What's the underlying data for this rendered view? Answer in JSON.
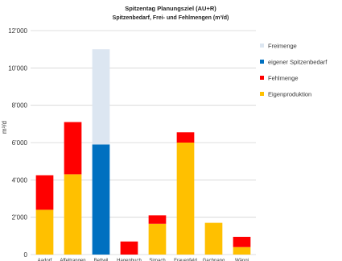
{
  "chart_data": {
    "type": "bar",
    "stacked": true,
    "title": "Spitzentag Planungsziel (AU+R)",
    "subtitle": "Spitzenbedarf, Frei- und Fehlmengen (m³/d)",
    "ylabel": "m³/d",
    "ylim": [
      0,
      12000
    ],
    "yticks": [
      0,
      2000,
      4000,
      6000,
      8000,
      10000,
      12000
    ],
    "ytick_labels": [
      "0",
      "2'000",
      "4'000",
      "6'000",
      "8'000",
      "10'000",
      "12'000"
    ],
    "grid": true,
    "legend_position": "right",
    "categories": [
      "Aadorf",
      "Affeltrangen",
      "Bettwil",
      "Hagenbuch",
      "Sirnach",
      "Frauenfeld",
      "Gachnang",
      "Wängi"
    ],
    "series": [
      {
        "name": "Eigenproduktion",
        "color": "#FFC000",
        "values": [
          2400,
          4300,
          0,
          0,
          1650,
          6000,
          1700,
          400
        ]
      },
      {
        "name": "Fehlmenge",
        "color": "#FF0000",
        "values": [
          1850,
          2800,
          0,
          700,
          450,
          550,
          0,
          550
        ]
      },
      {
        "name": "eigener Spitzenbedarf",
        "color": "#0070C0",
        "values": [
          0,
          0,
          5900,
          0,
          0,
          0,
          0,
          0
        ]
      },
      {
        "name": "Freimenge",
        "color": "#DCE6F1",
        "values": [
          0,
          0,
          5100,
          0,
          0,
          0,
          0,
          0
        ]
      }
    ],
    "legend_order": [
      "Freimenge",
      "eigener Spitzenbedarf",
      "Fehlmenge",
      "Eigenproduktion"
    ]
  }
}
